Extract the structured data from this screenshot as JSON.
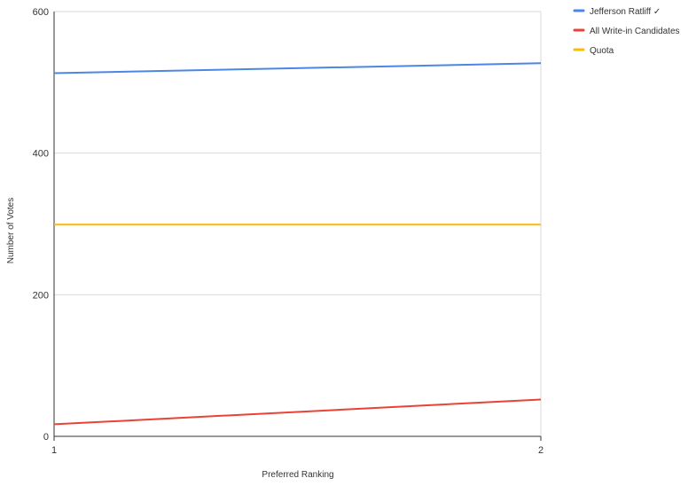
{
  "chart_data": {
    "type": "line",
    "xlabel": "Preferred Ranking",
    "ylabel": "Number of Votes",
    "x": [
      1,
      2
    ],
    "x_ticks": [
      "1",
      "2"
    ],
    "ylim": [
      0,
      600
    ],
    "y_ticks": [
      0,
      200,
      400,
      600
    ],
    "grid": true,
    "legend_position": "top-right",
    "series": [
      {
        "name": "Jefferson Ratliff ✓",
        "color": "#4a86e8",
        "values": [
          513,
          527
        ]
      },
      {
        "name": "All Write-in Candidates",
        "color": "#ea4335",
        "values": [
          17,
          52
        ]
      },
      {
        "name": "Quota",
        "color": "#fbbc04",
        "values": [
          299,
          299
        ]
      }
    ]
  }
}
